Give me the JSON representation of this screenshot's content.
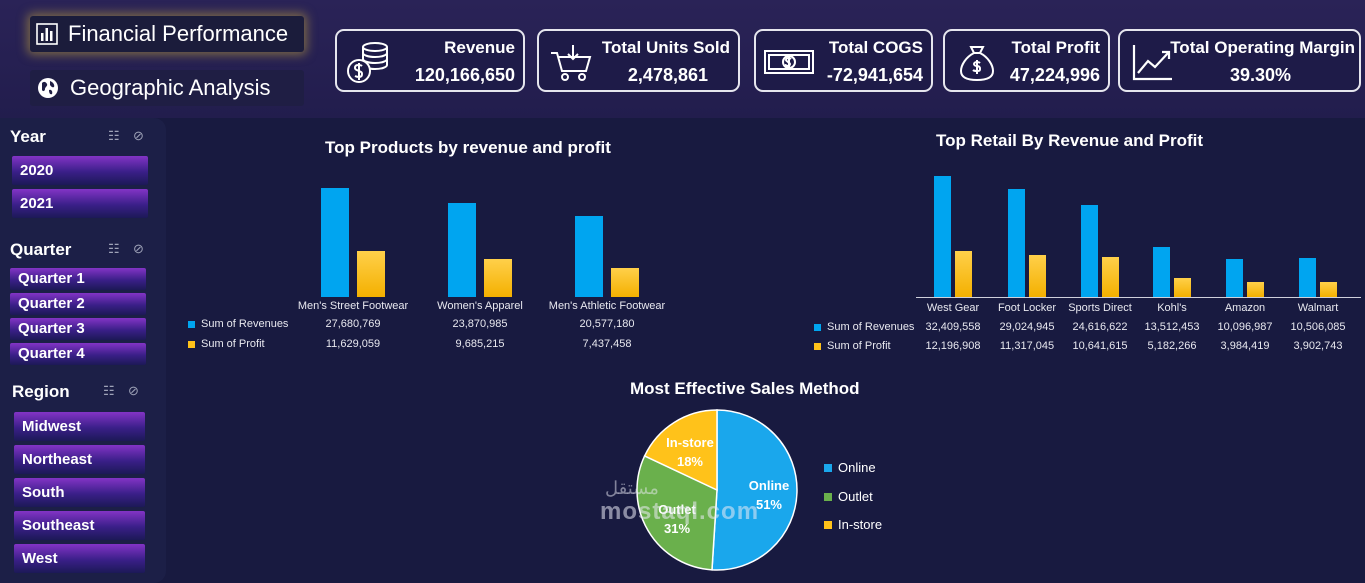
{
  "nav": {
    "financial_label": "Financial Performance",
    "geographic_label": "Geographic Analysis"
  },
  "kpis": [
    {
      "title": "Revenue",
      "value": "120,166,650",
      "icon": "coins-icon"
    },
    {
      "title": "Total Units Sold",
      "value": "2,478,861",
      "icon": "cart-icon"
    },
    {
      "title": "Total COGS",
      "value": "-72,941,654",
      "icon": "banknote-icon"
    },
    {
      "title": "Total Profit",
      "value": "47,224,996",
      "icon": "money-bag-icon"
    },
    {
      "title": "Total Operating Margin",
      "value": "39.30%",
      "icon": "trend-up-icon"
    }
  ],
  "slicers": {
    "year": {
      "title": "Year",
      "items": [
        "2020",
        "2021"
      ]
    },
    "quarter": {
      "title": "Quarter",
      "items": [
        "Quarter 1",
        "Quarter 2",
        "Quarter 3",
        "Quarter 4"
      ]
    },
    "region": {
      "title": "Region",
      "items": [
        "Midwest",
        "Northeast",
        "South",
        "Southeast",
        "West"
      ]
    }
  },
  "colors": {
    "revenue": "#00a5f0",
    "profit": "#ffc21a",
    "online": "#1aa7ec",
    "outlet": "#6ab04c",
    "instore": "#ffc21a"
  },
  "chart_data": [
    {
      "type": "bar",
      "title": "Top Products by revenue and profit",
      "categories": [
        "Men's Street Footwear",
        "Women's Apparel",
        "Men's Athletic Footwear"
      ],
      "series": [
        {
          "name": "Sum of Revenues",
          "values": [
            27680769,
            23870985,
            20577180
          ],
          "labels": [
            "27,680,769",
            "23,870,985",
            "20,577,180"
          ]
        },
        {
          "name": "Sum of Profit",
          "values": [
            11629059,
            9685215,
            7437458
          ],
          "labels": [
            "11,629,059",
            "9,685,215",
            "7,437,458"
          ]
        }
      ]
    },
    {
      "type": "bar",
      "title": "Top Retail By Revenue and Profit",
      "categories": [
        "West Gear",
        "Foot Locker",
        "Sports Direct",
        "Kohl's",
        "Amazon",
        "Walmart"
      ],
      "series": [
        {
          "name": "Sum of Revenues",
          "values": [
            32409558,
            29024945,
            24616622,
            13512453,
            10096987,
            10506085
          ],
          "labels": [
            "32,409,558",
            "29,024,945",
            "24,616,622",
            "13,512,453",
            "10,096,987",
            "10,506,085"
          ]
        },
        {
          "name": "Sum of Profit",
          "values": [
            12196908,
            11317045,
            10641615,
            5182266,
            3984419,
            3902743
          ],
          "labels": [
            "12,196,908",
            "11,317,045",
            "10,641,615",
            "5,182,266",
            "3,984,419",
            "3,902,743"
          ]
        }
      ]
    },
    {
      "type": "pie",
      "title": "Most Effective Sales Method",
      "categories": [
        "Online",
        "Outlet",
        "In-store"
      ],
      "values": [
        51,
        31,
        18
      ],
      "labels": [
        "51%",
        "31%",
        "18%"
      ]
    }
  ],
  "watermark": {
    "latin": "mostaql.com",
    "arabic": "مستقل"
  }
}
